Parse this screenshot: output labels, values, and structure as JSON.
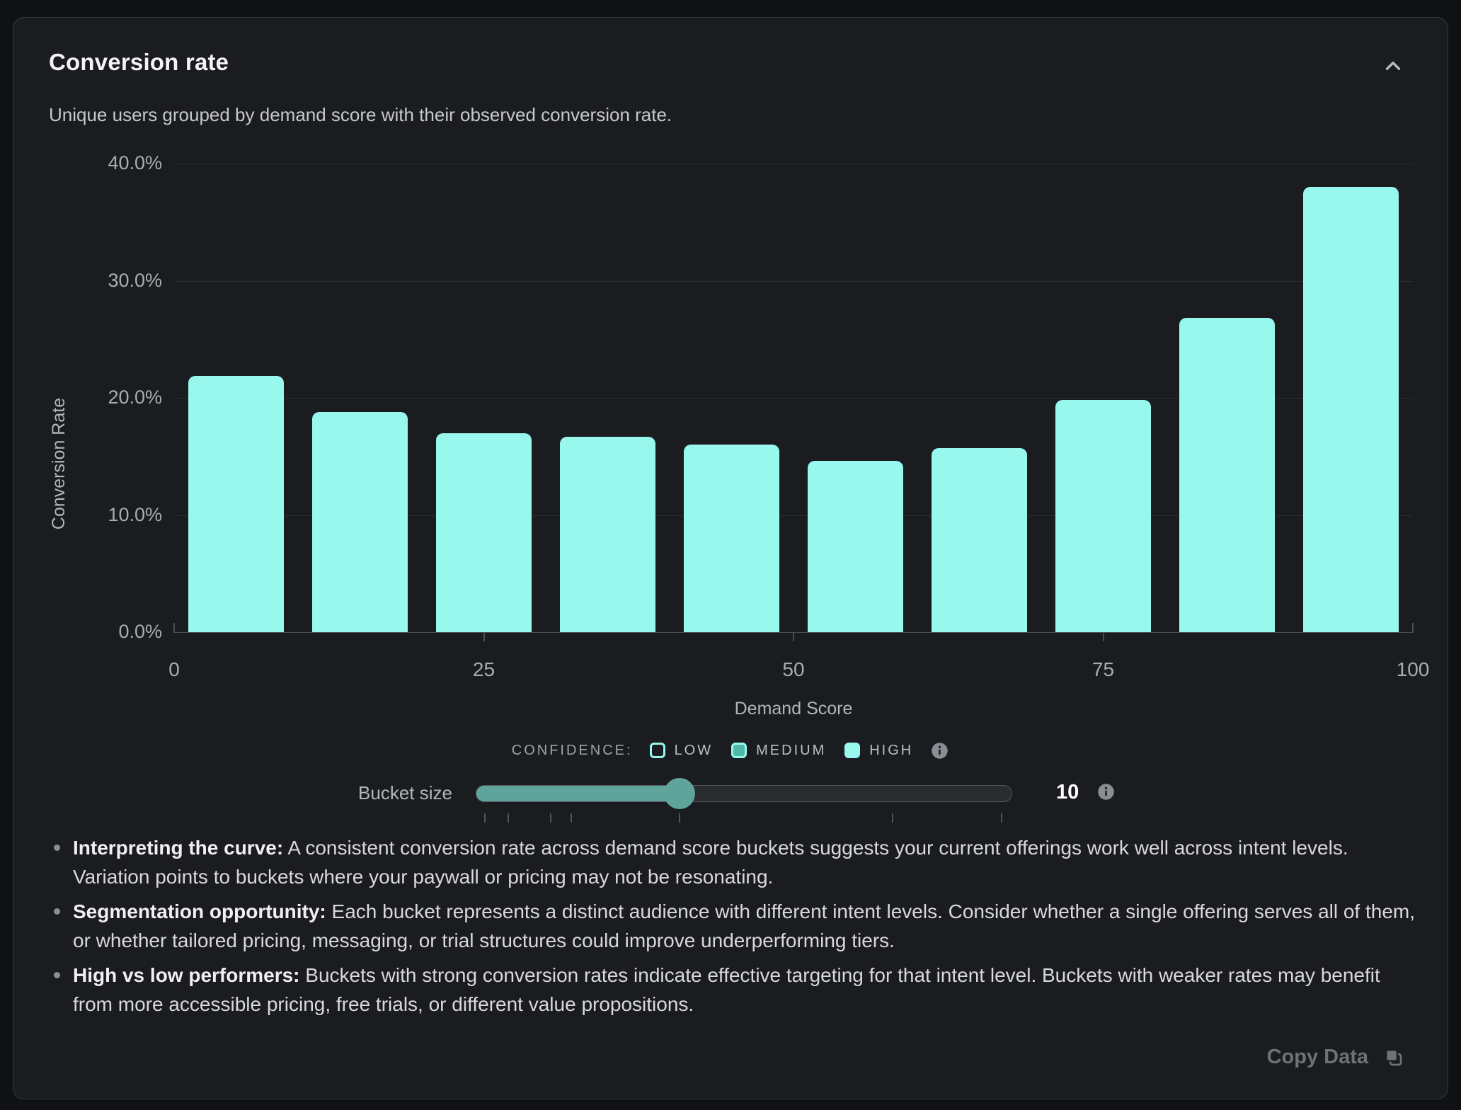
{
  "header": {
    "title": "Conversion rate",
    "subtitle": "Unique users grouped by demand score with their observed conversion rate."
  },
  "chart_data": {
    "type": "bar",
    "title": "Conversion rate",
    "xlabel": "Demand Score",
    "ylabel": "Conversion Rate",
    "xlim": [
      0,
      100
    ],
    "ylim": [
      0,
      40
    ],
    "x_ticks": [
      0,
      25,
      50,
      75,
      100
    ],
    "y_ticks": [
      0,
      10,
      20,
      30,
      40
    ],
    "y_tick_suffix": "%",
    "grid": true,
    "legend_position": "bottom",
    "bucket_size": 10,
    "categories": [
      "0-10",
      "10-20",
      "20-30",
      "30-40",
      "40-50",
      "50-60",
      "60-70",
      "70-80",
      "80-90",
      "90-100"
    ],
    "values": [
      21.9,
      18.8,
      17.0,
      16.7,
      16.0,
      14.6,
      15.7,
      19.8,
      26.8,
      38.0
    ],
    "bar_color": "#99f8ee"
  },
  "legend": {
    "label": "CONFIDENCE:",
    "items": [
      {
        "label": "LOW",
        "style": "low"
      },
      {
        "label": "MEDIUM",
        "style": "medium"
      },
      {
        "label": "HIGH",
        "style": "high"
      }
    ],
    "info_icon": "info-icon"
  },
  "slider": {
    "label": "Bucket size",
    "value": "10",
    "fill_percent": 37.9,
    "tick_positions_percent": [
      1.6,
      5.9,
      13.9,
      17.7,
      37.9,
      77.6,
      97.9
    ],
    "info_icon": "info-icon"
  },
  "insights": [
    {
      "lead": "Interpreting the curve:",
      "text": " A consistent conversion rate across demand score buckets suggests your current offerings work well across intent levels. Variation points to buckets where your paywall or pricing may not be resonating."
    },
    {
      "lead": "Segmentation opportunity:",
      "text": " Each bucket represents a distinct audience with different intent levels. Consider whether a single offering serves all of them, or whether tailored pricing, messaging, or trial structures could improve underperforming tiers."
    },
    {
      "lead": "High vs low performers:",
      "text": " Buckets with strong conversion rates indicate effective targeting for that intent level. Buckets with weaker rates may benefit from more accessible pricing, free trials, or different value propositions."
    }
  ],
  "footer": {
    "copy_label": "Copy Data"
  },
  "colors": {
    "page_bg": "#101114",
    "card_bg": "#1b1c20",
    "card_border": "#34373d",
    "bar": "#99f8ee",
    "accent_medium": "#4eb9a9",
    "slider_accent": "#5fa49b",
    "track_bg": "#292b2f",
    "track_border": "#55585e",
    "slider_tick": "#515459",
    "grid": "rgba(255,255,255,0.08)",
    "axis": "#4a4d53",
    "tick_text": "#a9acb2",
    "axis_text": "#b3b6bc",
    "legend_text": "#9fa3a9",
    "legend_text2": "#bcbfc5",
    "title": "#f4f4f6",
    "subtitle": "#c6c8cd",
    "body_text": "#d8d9dc",
    "lead_text": "#f0f0f2",
    "bullet": "#8b8f95",
    "muted": "#6e7277",
    "icon_gray": "#8a8e94",
    "chevron": "#b8bbc1"
  }
}
